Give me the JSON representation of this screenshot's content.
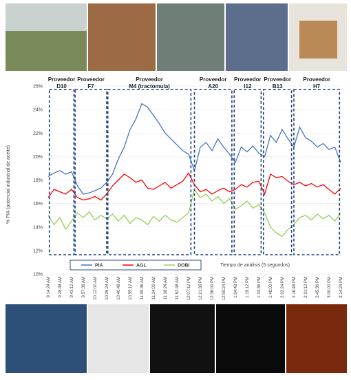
{
  "chart_data": {
    "type": "line",
    "y_label": "% PIA (potencial industrial de aceite)",
    "x_label": "Tiempo de análisis (5 segundos)",
    "categories": [
      "9:14:24 AM",
      null,
      "9:28:48 AM",
      null,
      "9:43:12 AM",
      null,
      "9:57:36 AM",
      null,
      "10:12:00 AM",
      null,
      "10:26:24 AM",
      null,
      "10:40:48 AM",
      null,
      "10:55:12 AM",
      null,
      "11:09:36 AM",
      null,
      "11:24:00 AM",
      null,
      "11:38:24 AM",
      null,
      "11:52:48 AM",
      null,
      "12:07:12 PM",
      null,
      "12:21:36 PM",
      null,
      "12:36:00 PM",
      null,
      "12:50:24 PM",
      null,
      "1:04:48 PM",
      null,
      "1:19:12 PM",
      null,
      "1:33:36 PM",
      null,
      "1:48:00 PM",
      null,
      "2:02:24 PM",
      null,
      "2:16:48 PM",
      null,
      "2:31:12 PM",
      null,
      "2:45:36 PM",
      null,
      "3:00:00 PM",
      null,
      "3:14:24 PM"
    ],
    "series": [
      {
        "name": "PIA",
        "color": "#4472c4",
        "values": [
          18.3,
          18.6,
          18.8,
          18.5,
          18.7,
          17.5,
          16.8,
          16.9,
          17.1,
          17.3,
          17.8,
          18.5,
          19.8,
          20.8,
          22.3,
          23.2,
          24.5,
          24.2,
          23.5,
          22.8,
          22.0,
          21.5,
          21.0,
          20.5,
          20.2,
          18.8,
          20.8,
          21.2,
          20.5,
          21.5,
          20.8,
          20.2,
          19.5,
          20.8,
          20.4,
          20.9,
          20.3,
          20.0,
          21.8,
          21.2,
          22.3,
          21.5,
          20.8,
          22.5,
          21.6,
          21.3,
          20.8,
          21.1,
          20.6,
          20.8,
          19.5
        ]
      },
      {
        "name": "AGL",
        "color": "#ff0000",
        "values": [
          16.5,
          17.2,
          17.0,
          16.8,
          17.2,
          16.5,
          16.3,
          16.4,
          16.6,
          16.3,
          16.8,
          17.5,
          18.0,
          18.5,
          18.2,
          17.8,
          18.0,
          17.3,
          17.2,
          17.5,
          17.8,
          17.3,
          17.6,
          17.9,
          18.6,
          17.6,
          17.0,
          17.2,
          16.8,
          17.1,
          17.3,
          17.0,
          17.2,
          17.6,
          17.4,
          17.8,
          17.9,
          16.8,
          18.5,
          18.2,
          18.3,
          17.9,
          17.6,
          17.8,
          17.5,
          17.7,
          17.4,
          17.6,
          17.2,
          16.8,
          17.3
        ]
      },
      {
        "name": "DOBI",
        "color": "#92d050",
        "values": [
          15.0,
          14.2,
          14.8,
          13.8,
          14.5,
          15.2,
          14.8,
          15.3,
          14.6,
          15.0,
          14.7,
          15.1,
          14.5,
          15.0,
          14.3,
          14.8,
          14.6,
          14.2,
          14.9,
          14.5,
          15.0,
          14.6,
          14.4,
          14.8,
          15.2,
          17.2,
          16.5,
          16.8,
          16.2,
          16.6,
          16.0,
          16.4,
          15.5,
          15.8,
          16.2,
          15.6,
          15.9,
          15.2,
          14.0,
          13.5,
          13.2,
          13.8,
          14.2,
          14.8,
          15.0,
          14.6,
          15.1,
          14.7,
          15.0,
          14.5,
          15.2
        ]
      }
    ],
    "ylim": [
      10,
      26
    ],
    "yticks": [
      {
        "value": 10,
        "label": "10%"
      },
      {
        "value": 12,
        "label": "12%"
      },
      {
        "value": 14,
        "label": "14%"
      },
      {
        "value": 16,
        "label": "16%"
      },
      {
        "value": 18,
        "label": "18%"
      },
      {
        "value": 20,
        "label": "20%"
      },
      {
        "value": 22,
        "label": "22%"
      },
      {
        "value": 24,
        "label": "24%"
      },
      {
        "value": 26,
        "label": "26%"
      }
    ],
    "grid": true,
    "annotations": [
      {
        "lines": [
          "Proveedor",
          "D10"
        ]
      },
      {
        "lines": [
          "Proveedor",
          "F7"
        ]
      },
      {
        "lines": [
          "Proveedor",
          "M4 (tractomula)"
        ]
      },
      {
        "lines": [
          "Proveedor",
          "A20"
        ]
      },
      {
        "lines": [
          "Proveedor",
          "I12"
        ]
      },
      {
        "lines": [
          "Proveedor",
          "B13"
        ]
      },
      {
        "lines": [
          "Proveedor",
          "H7"
        ]
      }
    ]
  }
}
